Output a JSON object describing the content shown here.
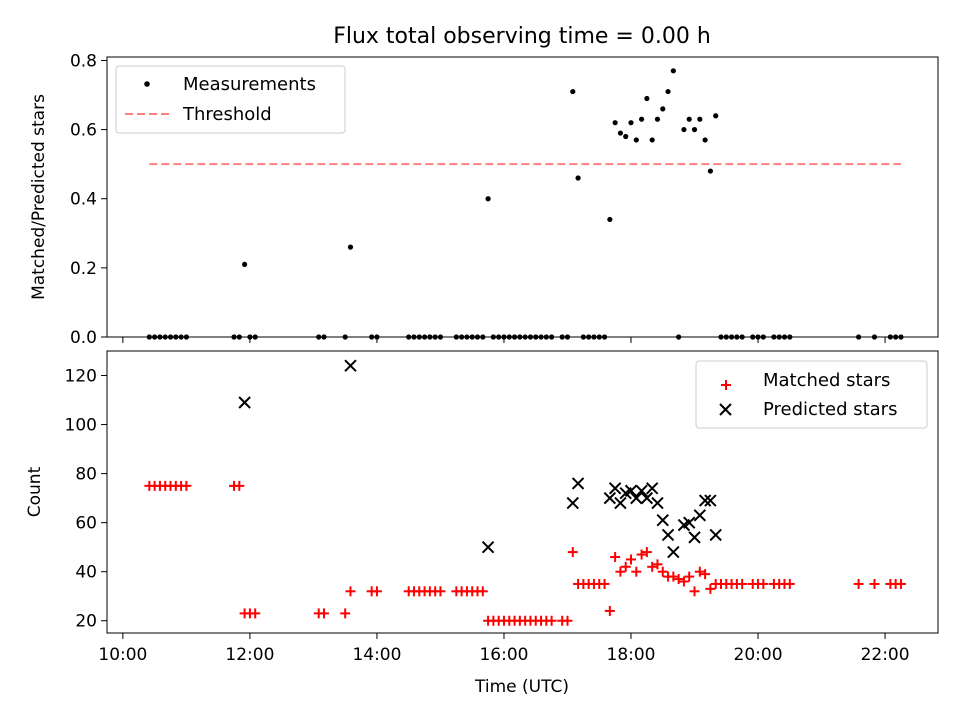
{
  "chart_data": [
    {
      "type": "scatter",
      "title": "Flux total observing time = 0.00 h",
      "xlabel": "",
      "ylabel": "Matched/Predicted stars",
      "xlim": [
        "09:45",
        "22:50"
      ],
      "ylim": [
        0,
        0.81
      ],
      "yticks": [
        0.0,
        0.2,
        0.4,
        0.6,
        0.8
      ],
      "ytick_labels": [
        "0.0",
        "0.2",
        "0.4",
        "0.6",
        "0.8"
      ],
      "xticks": [
        "10:00",
        "12:00",
        "14:00",
        "16:00",
        "18:00",
        "20:00",
        "22:00"
      ],
      "legend_placement": "upper left",
      "series": [
        {
          "name": "Measurements",
          "style": "dot",
          "color": "#000000",
          "points": [
            [
              "10:25",
              0
            ],
            [
              "10:30",
              0
            ],
            [
              "10:35",
              0
            ],
            [
              "10:40",
              0
            ],
            [
              "10:45",
              0
            ],
            [
              "10:50",
              0
            ],
            [
              "10:55",
              0
            ],
            [
              "11:00",
              0
            ],
            [
              "11:45",
              0
            ],
            [
              "11:50",
              0
            ],
            [
              "11:55",
              0.21
            ],
            [
              "12:00",
              0
            ],
            [
              "12:05",
              0
            ],
            [
              "13:05",
              0
            ],
            [
              "13:10",
              0
            ],
            [
              "13:30",
              0
            ],
            [
              "13:35",
              0.26
            ],
            [
              "13:55",
              0
            ],
            [
              "14:00",
              0
            ],
            [
              "14:30",
              0
            ],
            [
              "14:35",
              0
            ],
            [
              "14:40",
              0
            ],
            [
              "14:45",
              0
            ],
            [
              "14:50",
              0
            ],
            [
              "14:55",
              0
            ],
            [
              "15:00",
              0
            ],
            [
              "15:15",
              0
            ],
            [
              "15:20",
              0
            ],
            [
              "15:25",
              0
            ],
            [
              "15:30",
              0
            ],
            [
              "15:35",
              0
            ],
            [
              "15:40",
              0
            ],
            [
              "15:45",
              0.4
            ],
            [
              "15:50",
              0
            ],
            [
              "15:55",
              0
            ],
            [
              "16:00",
              0
            ],
            [
              "16:05",
              0
            ],
            [
              "16:10",
              0
            ],
            [
              "16:15",
              0
            ],
            [
              "16:20",
              0
            ],
            [
              "16:25",
              0
            ],
            [
              "16:30",
              0
            ],
            [
              "16:35",
              0
            ],
            [
              "16:40",
              0
            ],
            [
              "16:45",
              0
            ],
            [
              "16:55",
              0
            ],
            [
              "17:00",
              0
            ],
            [
              "17:05",
              0.71
            ],
            [
              "17:10",
              0.46
            ],
            [
              "17:15",
              0
            ],
            [
              "17:20",
              0
            ],
            [
              "17:25",
              0
            ],
            [
              "17:30",
              0
            ],
            [
              "17:35",
              0
            ],
            [
              "17:40",
              0.34
            ],
            [
              "17:45",
              0.62
            ],
            [
              "17:50",
              0.59
            ],
            [
              "17:55",
              0.58
            ],
            [
              "18:00",
              0.62
            ],
            [
              "18:05",
              0.57
            ],
            [
              "18:10",
              0.63
            ],
            [
              "18:15",
              0.69
            ],
            [
              "18:20",
              0.57
            ],
            [
              "18:25",
              0.63
            ],
            [
              "18:30",
              0.66
            ],
            [
              "18:35",
              0.71
            ],
            [
              "18:40",
              0.77
            ],
            [
              "18:45",
              0
            ],
            [
              "18:50",
              0.6
            ],
            [
              "18:55",
              0.63
            ],
            [
              "19:00",
              0.6
            ],
            [
              "19:05",
              0.63
            ],
            [
              "19:10",
              0.57
            ],
            [
              "19:15",
              0.48
            ],
            [
              "19:20",
              0.64
            ],
            [
              "19:25",
              0
            ],
            [
              "19:30",
              0
            ],
            [
              "19:35",
              0
            ],
            [
              "19:40",
              0
            ],
            [
              "19:45",
              0
            ],
            [
              "19:55",
              0
            ],
            [
              "20:00",
              0
            ],
            [
              "20:05",
              0
            ],
            [
              "20:15",
              0
            ],
            [
              "20:20",
              0
            ],
            [
              "20:25",
              0
            ],
            [
              "20:30",
              0
            ],
            [
              "21:35",
              0
            ],
            [
              "21:50",
              0
            ],
            [
              "22:05",
              0
            ],
            [
              "22:10",
              0
            ],
            [
              "22:15",
              0
            ]
          ]
        },
        {
          "name": "Threshold",
          "style": "dashed-line",
          "color": "#ff7f7f",
          "points": [
            [
              "10:25",
              0.5
            ],
            [
              "22:15",
              0.5
            ]
          ]
        }
      ]
    },
    {
      "type": "scatter",
      "title": "",
      "xlabel": "Time (UTC)",
      "ylabel": "Count",
      "xlim": [
        "09:45",
        "22:50"
      ],
      "ylim": [
        15,
        130
      ],
      "yticks": [
        20,
        40,
        60,
        80,
        100,
        120
      ],
      "ytick_labels": [
        "20",
        "40",
        "60",
        "80",
        "100",
        "120"
      ],
      "xticks": [
        "10:00",
        "12:00",
        "14:00",
        "16:00",
        "18:00",
        "20:00",
        "22:00"
      ],
      "xtick_labels": [
        "10:00",
        "12:00",
        "14:00",
        "16:00",
        "18:00",
        "20:00",
        "22:00"
      ],
      "legend_placement": "upper right",
      "series": [
        {
          "name": "Matched stars",
          "style": "plus",
          "color": "#ff0000",
          "points": [
            [
              "10:25",
              75
            ],
            [
              "10:30",
              75
            ],
            [
              "10:35",
              75
            ],
            [
              "10:40",
              75
            ],
            [
              "10:45",
              75
            ],
            [
              "10:50",
              75
            ],
            [
              "10:55",
              75
            ],
            [
              "11:00",
              75
            ],
            [
              "11:45",
              75
            ],
            [
              "11:50",
              75
            ],
            [
              "11:55",
              23
            ],
            [
              "12:00",
              23
            ],
            [
              "12:05",
              23
            ],
            [
              "13:05",
              23
            ],
            [
              "13:10",
              23
            ],
            [
              "13:30",
              23
            ],
            [
              "13:35",
              32
            ],
            [
              "13:55",
              32
            ],
            [
              "14:00",
              32
            ],
            [
              "14:30",
              32
            ],
            [
              "14:35",
              32
            ],
            [
              "14:40",
              32
            ],
            [
              "14:45",
              32
            ],
            [
              "14:50",
              32
            ],
            [
              "14:55",
              32
            ],
            [
              "15:00",
              32
            ],
            [
              "15:15",
              32
            ],
            [
              "15:20",
              32
            ],
            [
              "15:25",
              32
            ],
            [
              "15:30",
              32
            ],
            [
              "15:35",
              32
            ],
            [
              "15:40",
              32
            ],
            [
              "15:45",
              20
            ],
            [
              "15:50",
              20
            ],
            [
              "15:55",
              20
            ],
            [
              "16:00",
              20
            ],
            [
              "16:05",
              20
            ],
            [
              "16:10",
              20
            ],
            [
              "16:15",
              20
            ],
            [
              "16:20",
              20
            ],
            [
              "16:25",
              20
            ],
            [
              "16:30",
              20
            ],
            [
              "16:35",
              20
            ],
            [
              "16:40",
              20
            ],
            [
              "16:45",
              20
            ],
            [
              "16:55",
              20
            ],
            [
              "17:00",
              20
            ],
            [
              "17:05",
              48
            ],
            [
              "17:10",
              35
            ],
            [
              "17:15",
              35
            ],
            [
              "17:20",
              35
            ],
            [
              "17:25",
              35
            ],
            [
              "17:30",
              35
            ],
            [
              "17:35",
              35
            ],
            [
              "17:40",
              24
            ],
            [
              "17:45",
              46
            ],
            [
              "17:50",
              40
            ],
            [
              "17:55",
              42
            ],
            [
              "18:00",
              45
            ],
            [
              "18:05",
              40
            ],
            [
              "18:10",
              47
            ],
            [
              "18:15",
              48
            ],
            [
              "18:20",
              42
            ],
            [
              "18:25",
              43
            ],
            [
              "18:30",
              40
            ],
            [
              "18:35",
              38
            ],
            [
              "18:40",
              38
            ],
            [
              "18:45",
              37
            ],
            [
              "18:50",
              36
            ],
            [
              "18:55",
              38
            ],
            [
              "19:00",
              32
            ],
            [
              "19:05",
              40
            ],
            [
              "19:10",
              39
            ],
            [
              "19:15",
              33
            ],
            [
              "19:20",
              35
            ],
            [
              "19:25",
              35
            ],
            [
              "19:30",
              35
            ],
            [
              "19:35",
              35
            ],
            [
              "19:40",
              35
            ],
            [
              "19:45",
              35
            ],
            [
              "19:55",
              35
            ],
            [
              "20:00",
              35
            ],
            [
              "20:05",
              35
            ],
            [
              "20:15",
              35
            ],
            [
              "20:20",
              35
            ],
            [
              "20:25",
              35
            ],
            [
              "20:30",
              35
            ],
            [
              "21:35",
              35
            ],
            [
              "21:50",
              35
            ],
            [
              "22:05",
              35
            ],
            [
              "22:10",
              35
            ],
            [
              "22:15",
              35
            ]
          ]
        },
        {
          "name": "Predicted stars",
          "style": "x",
          "color": "#000000",
          "points": [
            [
              "11:55",
              109
            ],
            [
              "13:35",
              124
            ],
            [
              "15:45",
              50
            ],
            [
              "17:05",
              68
            ],
            [
              "17:10",
              76
            ],
            [
              "17:40",
              70
            ],
            [
              "17:45",
              74
            ],
            [
              "17:50",
              68
            ],
            [
              "17:55",
              72
            ],
            [
              "18:00",
              73
            ],
            [
              "18:05",
              70
            ],
            [
              "18:10",
              73
            ],
            [
              "18:15",
              70
            ],
            [
              "18:20",
              74
            ],
            [
              "18:25",
              68
            ],
            [
              "18:30",
              61
            ],
            [
              "18:35",
              55
            ],
            [
              "18:40",
              48
            ],
            [
              "18:50",
              59
            ],
            [
              "18:55",
              60
            ],
            [
              "19:00",
              54
            ],
            [
              "19:05",
              63
            ],
            [
              "19:10",
              69
            ],
            [
              "19:15",
              69
            ],
            [
              "19:20",
              55
            ]
          ]
        }
      ]
    }
  ],
  "colors": {
    "measurements": "#000000",
    "threshold": "#ff7f7f",
    "matched": "#ff0000",
    "predicted": "#000000"
  }
}
